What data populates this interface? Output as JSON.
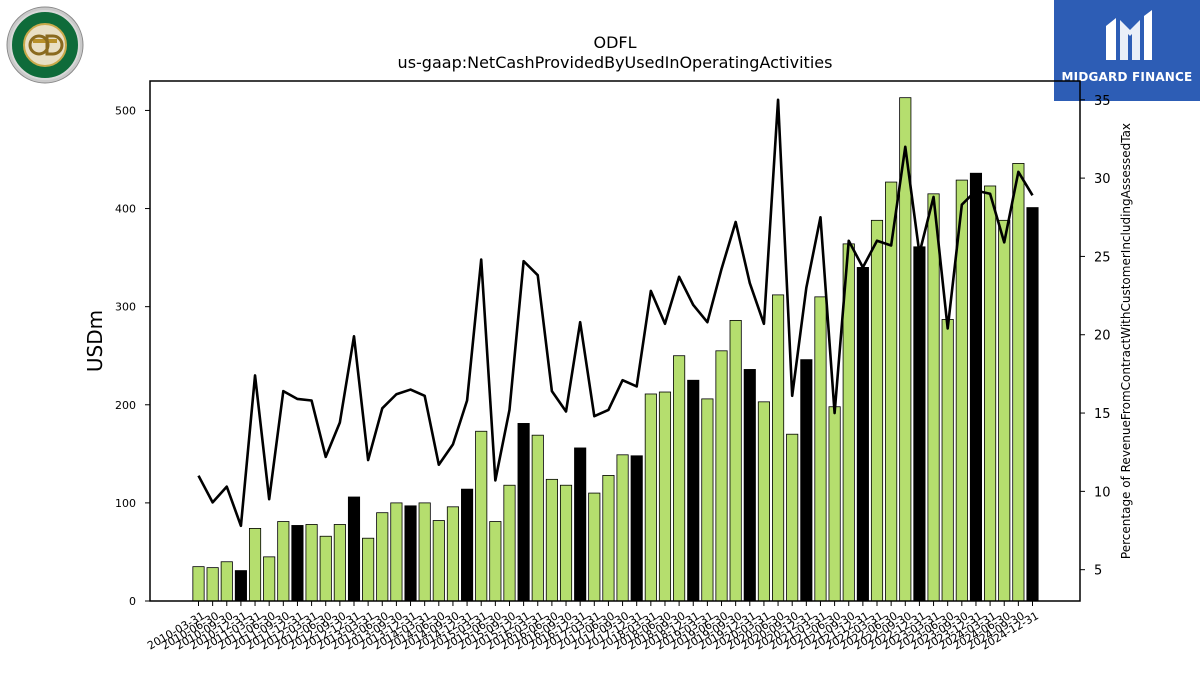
{
  "brand": {
    "company_logo_text": "OLD DOMINION FREIGHT LINE",
    "watermark": "MIDGARD FINANCE"
  },
  "colors": {
    "bar_green": "#b5de6e",
    "bar_black": "#000000",
    "line": "#000000"
  },
  "chart_data": {
    "type": "bar",
    "title": "ODFL",
    "subtitle": "us-gaap:NetCashProvidedByUsedInOperatingActivities",
    "ylabel": "USDm",
    "y2label": "Percentage of RevenueFromContractWithCustomerIncludingAssessedTax",
    "ylim": [
      0,
      530
    ],
    "y2lim": [
      3,
      36.2
    ],
    "yticks": [
      0,
      100,
      200,
      300,
      400,
      500
    ],
    "y2ticks": [
      5,
      10,
      15,
      20,
      25,
      30,
      35
    ],
    "categories": [
      "2010-03-31",
      "2010-06-30",
      "2010-09-30",
      "2010-12-31",
      "2011-03-31",
      "2011-06-30",
      "2011-09-30",
      "2011-12-31",
      "2012-03-31",
      "2012-06-30",
      "2012-09-30",
      "2012-12-31",
      "2013-03-31",
      "2013-06-30",
      "2013-09-30",
      "2013-12-31",
      "2014-03-31",
      "2014-06-30",
      "2014-09-30",
      "2014-12-31",
      "2015-03-31",
      "2015-06-30",
      "2015-09-30",
      "2015-12-31",
      "2016-03-31",
      "2016-06-30",
      "2016-09-30",
      "2016-12-31",
      "2017-03-31",
      "2017-06-30",
      "2017-09-30",
      "2017-12-31",
      "2018-03-31",
      "2018-06-30",
      "2018-09-30",
      "2018-12-31",
      "2019-03-31",
      "2019-06-30",
      "2019-09-30",
      "2019-12-31",
      "2020-03-31",
      "2020-06-30",
      "2020-09-30",
      "2020-12-31",
      "2021-03-31",
      "2021-06-30",
      "2021-09-30",
      "2021-12-31",
      "2022-03-31",
      "2022-06-30",
      "2022-09-30",
      "2022-12-31",
      "2023-03-31",
      "2023-06-30",
      "2023-09-30",
      "2023-12-31",
      "2024-03-31",
      "2024-06-30",
      "2024-09-30",
      "2024-12-31"
    ],
    "tick_labels": [
      "2010-03-31",
      "2010-06-30",
      "2010-09-30",
      "2010-12-31",
      "2011-03-31",
      "2011-06-30",
      "2011-09-30",
      "2011-12-31",
      "2012-03-31",
      "2012-06-30",
      "2012-09-30",
      "2012-12-31",
      "2013-03-31",
      "2013-06-30",
      "2013-09-30",
      "2013-12-31",
      "2014-03-31",
      "2014-06-30",
      "2014-09-30",
      "2014-12-31",
      "2015-03-31",
      "2015-06-30",
      "2015-09-30",
      "2015-12-31",
      "2016-03-31",
      "2016-06-30",
      "2016-09-30",
      "2016-12-31",
      "2017-03-31",
      "2017-06-30",
      "2017-09-30",
      "2017-12-31",
      "2018-03-31",
      "2018-06-30",
      "2018-09-30",
      "2018-12-31",
      "2019-03-31",
      "2019-06-30",
      "2019-09-30",
      "2019-12-31",
      "2020-03-31",
      "2020-06-30",
      "2020-09-30",
      "2020-12-31",
      "2021-03-31",
      "2021-06-30",
      "2021-09-30",
      "2021-12-31",
      "2022-03-31",
      "2022-06-30",
      "2022-09-30",
      "2022-12-31",
      "2023-03-31",
      "2023-06-30",
      "2023-09-30",
      "2023-12-31",
      "2024-03-31",
      "2024-06-30",
      "2024-09-30",
      "2024-12-31"
    ],
    "series": [
      {
        "axis": "left",
        "kind": "bar",
        "values": [
          35,
          34,
          40,
          31,
          74,
          45,
          81,
          77,
          78,
          66,
          78,
          106,
          64,
          90,
          100,
          97,
          100,
          82,
          96,
          114,
          173,
          81,
          118,
          181,
          169,
          124,
          118,
          156,
          110,
          128,
          149,
          148,
          211,
          213,
          250,
          225,
          206,
          255,
          286,
          236,
          203,
          312,
          170,
          246,
          310,
          198,
          364,
          340,
          388,
          427,
          513,
          361,
          415,
          287,
          429,
          436,
          423,
          388,
          446,
          401
        ],
        "highlight_black": [
          3,
          7,
          11,
          15,
          19,
          23,
          27,
          31,
          35,
          39,
          43,
          47,
          51,
          55,
          59
        ]
      },
      {
        "axis": "right",
        "kind": "line",
        "values": [
          11.0,
          9.3,
          10.3,
          7.8,
          17.4,
          9.5,
          16.4,
          15.9,
          15.8,
          12.2,
          14.4,
          19.9,
          12.0,
          15.3,
          16.2,
          16.5,
          16.1,
          11.7,
          13.0,
          15.8,
          24.8,
          10.7,
          15.2,
          24.7,
          23.8,
          16.4,
          15.1,
          20.8,
          14.8,
          15.2,
          17.1,
          16.7,
          22.8,
          20.7,
          23.7,
          21.9,
          20.8,
          24.2,
          27.2,
          23.3,
          20.7,
          35.0,
          16.1,
          23.0,
          27.5,
          15.0,
          26.0,
          24.3,
          26.0,
          25.7,
          32.0,
          25.2,
          28.8,
          20.4,
          28.3,
          29.2,
          29.0,
          25.9,
          30.4,
          28.9
        ]
      }
    ],
    "grid": false,
    "legend": "none"
  }
}
